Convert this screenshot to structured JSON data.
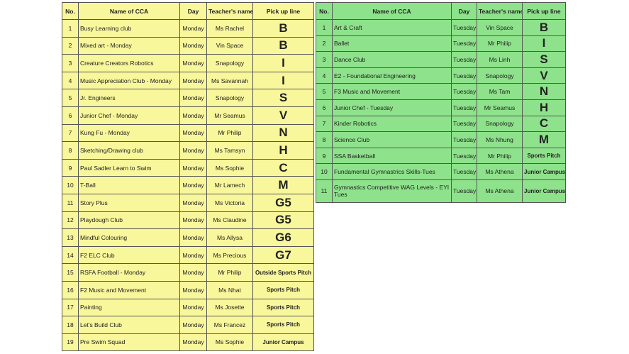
{
  "monday": {
    "headers": [
      "No.",
      "Name of CCA",
      "Day",
      "Teacher's name",
      "Pick up line"
    ],
    "color": "#f9f79b",
    "rows": [
      [
        "1",
        "Busy Learning club",
        "Monday",
        "Ms Rachel",
        "B"
      ],
      [
        "2",
        "Mixed art - Monday",
        "Monday",
        "Vin Space",
        "B"
      ],
      [
        "3",
        "Creature Creators Robotics",
        "Monday",
        "Snapology",
        "I"
      ],
      [
        "4",
        "Music Appreciation Club - Monday",
        "Monday",
        "Ms Savannah",
        "I"
      ],
      [
        "5",
        "Jr. Engineers",
        "Monday",
        "Snapology",
        "S"
      ],
      [
        "6",
        "Junior Chef - Monday",
        "Monday",
        "Mr Seamus",
        "V"
      ],
      [
        "7",
        "Kung Fu - Monday",
        "Monday",
        "Mr Philip",
        "N"
      ],
      [
        "8",
        "Sketching/Drawing club",
        "Monday",
        "Ms Tamsyn",
        "H"
      ],
      [
        "9",
        "Paul Sadler Learn to Swim",
        "Monday",
        "Ms Sophie",
        "C"
      ],
      [
        "10",
        "T-Ball",
        "Monday",
        "Mr Lamech",
        "M"
      ],
      [
        "11",
        "Story Plus",
        "Monday",
        "Ms Victoria",
        "G5"
      ],
      [
        "12",
        "Playdough Club",
        "Monday",
        "Ms Claudine",
        "G5"
      ],
      [
        "13",
        "Mindful Colouring",
        "Monday",
        "Ms Allysa",
        "G6"
      ],
      [
        "14",
        "F2 ELC Club",
        "Monday",
        "Ms Precious",
        "G7"
      ],
      [
        "15",
        "RSFA Football - Monday",
        "Monday",
        "Mr Philip",
        "Outside Sports Pitch"
      ],
      [
        "16",
        "F2 Music and Movement",
        "Monday",
        "Ms Nhat",
        "Sports Pitch"
      ],
      [
        "17",
        "Painting",
        "Monday",
        "Ms Josette",
        "Sports Pitch"
      ],
      [
        "18",
        "Let's Build Club",
        "Monday",
        "Ms Francez",
        "Sports Pitch"
      ],
      [
        "19",
        "Pre Swim Squad",
        "Monday",
        "Ms Sophie",
        "Junior Campus"
      ]
    ]
  },
  "tuesday": {
    "headers": [
      "No.",
      "Name of CCA",
      "Day",
      "Teacher's name",
      "Pick up line"
    ],
    "color": "#8ee28b",
    "rows": [
      [
        "1",
        "Art & Craft",
        "Tuesday",
        "Vin Space",
        "B"
      ],
      [
        "2",
        "Ballet",
        "Tuesday",
        "Mr Philip",
        "I"
      ],
      [
        "3",
        "Dance Club",
        "Tuesday",
        "Ms Linh",
        "S"
      ],
      [
        "4",
        "E2 - Foundational Engineering",
        "Tuesday",
        "Snapology",
        "V"
      ],
      [
        "5",
        "F3 Music and Movement",
        "Tuesday",
        "Ms Tam",
        "N"
      ],
      [
        "6",
        "Junior Chef - Tuesday",
        "Tuesday",
        "Mr Seamus",
        "H"
      ],
      [
        "7",
        "Kinder Robotics",
        "Tuesday",
        "Snapology",
        "C"
      ],
      [
        "8",
        "Science Club",
        "Tuesday",
        "Ms Nhung",
        "M"
      ],
      [
        "9",
        "SSA Basketball",
        "Tuesday",
        "Mr Philip",
        "Sports Pitch"
      ],
      [
        "10",
        "Fundamental Gymnastrics Skills-Tues",
        "Tuesday",
        "Ms Athena",
        "Junior Campus"
      ],
      [
        "11",
        "Gymnastics Competitive WAG Levels - EYI Tues",
        "Tuesday",
        "Ms Athena",
        "Junior Campus"
      ]
    ]
  }
}
